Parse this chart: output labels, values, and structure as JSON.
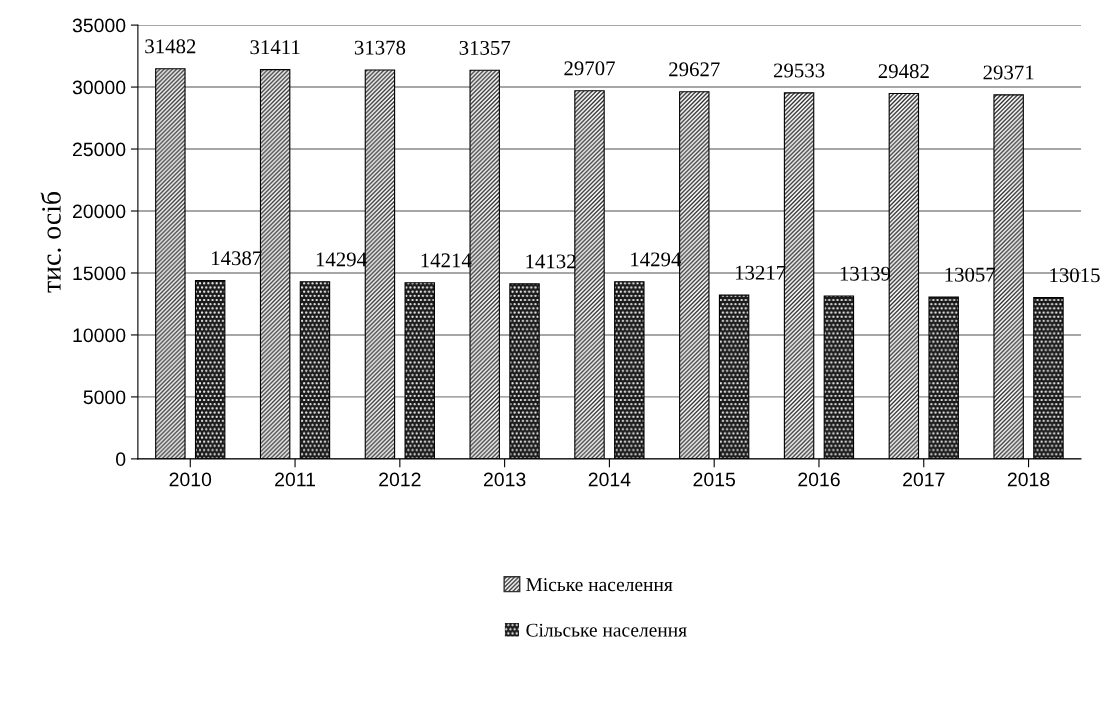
{
  "chart_data": {
    "type": "bar",
    "ylabel": "тис. осіб",
    "categories": [
      "2010",
      "2011",
      "2012",
      "2013",
      "2014",
      "2015",
      "2016",
      "2017",
      "2018"
    ],
    "series": [
      {
        "name": "Міське населення",
        "color": "#ffffff",
        "values": [
          31482,
          31411,
          31378,
          31357,
          29707,
          29627,
          29533,
          29482,
          29371
        ]
      },
      {
        "name": "Сільське населення",
        "color": "#1a1a1a",
        "values": [
          14387,
          14294,
          14214,
          14132,
          14294,
          13217,
          13139,
          13057,
          13015
        ]
      }
    ],
    "ylim": [
      0,
      35000
    ],
    "yticks": [
      0,
      5000,
      10000,
      15000,
      20000,
      25000,
      30000,
      35000
    ],
    "grid": "y",
    "legend": "bottom",
    "data_labels": true
  }
}
